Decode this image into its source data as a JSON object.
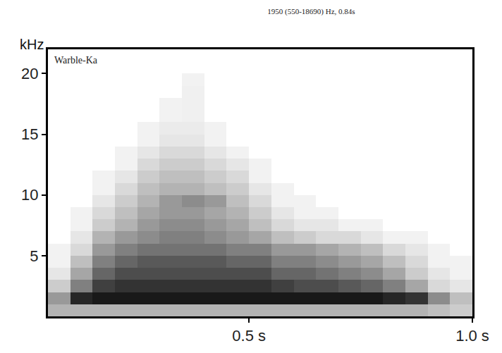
{
  "chart_data": {
    "type": "heatmap",
    "title": "1950 (550-18690) Hz, 0.84s",
    "ylabel": "kHz",
    "annotations": [
      "Warble-Ka"
    ],
    "color": "#000000",
    "grid": false,
    "xlim": [
      0.05,
      1.0
    ],
    "xticks": [
      {
        "value": 0.5,
        "label": "0.5 s"
      },
      {
        "value": 1.0,
        "label": "1.0 s"
      }
    ],
    "ylim": [
      0,
      22
    ],
    "yticks": [
      5,
      10,
      15,
      20
    ],
    "zlim": [
      0,
      1
    ],
    "x": [
      0.05,
      0.1,
      0.15,
      0.2,
      0.25,
      0.3,
      0.35,
      0.4,
      0.45,
      0.5,
      0.55,
      0.6,
      0.65,
      0.7,
      0.75,
      0.8,
      0.85,
      0.9,
      0.95,
      1.0
    ],
    "y": [
      0,
      1,
      2,
      3,
      4,
      5,
      6,
      7,
      8,
      9,
      10,
      11,
      12,
      13,
      14,
      15,
      16,
      17,
      18,
      19,
      20,
      21,
      22
    ],
    "z": [
      [
        0.3,
        0.3,
        0.3,
        0.3,
        0.3,
        0.3,
        0.3,
        0.3,
        0.3,
        0.3,
        0.3,
        0.3,
        0.3,
        0.3,
        0.3,
        0.3,
        0.3,
        0.25,
        0.2
      ],
      [
        0.4,
        0.85,
        0.9,
        0.9,
        0.9,
        0.9,
        0.9,
        0.9,
        0.9,
        0.9,
        0.9,
        0.9,
        0.9,
        0.9,
        0.9,
        0.85,
        0.8,
        0.45,
        0.25
      ],
      [
        0.2,
        0.5,
        0.75,
        0.8,
        0.8,
        0.8,
        0.8,
        0.8,
        0.8,
        0.8,
        0.75,
        0.7,
        0.7,
        0.65,
        0.6,
        0.5,
        0.35,
        0.15,
        0.1
      ],
      [
        0.1,
        0.35,
        0.6,
        0.7,
        0.7,
        0.7,
        0.7,
        0.7,
        0.7,
        0.7,
        0.6,
        0.6,
        0.55,
        0.5,
        0.45,
        0.35,
        0.2,
        0.1,
        0.05
      ],
      [
        0.05,
        0.25,
        0.5,
        0.6,
        0.65,
        0.65,
        0.65,
        0.65,
        0.6,
        0.6,
        0.5,
        0.5,
        0.45,
        0.4,
        0.35,
        0.25,
        0.15,
        0.05,
        0.05
      ],
      [
        0.05,
        0.15,
        0.4,
        0.5,
        0.55,
        0.55,
        0.55,
        0.55,
        0.5,
        0.5,
        0.4,
        0.4,
        0.35,
        0.3,
        0.25,
        0.15,
        0.1,
        0.05,
        0
      ],
      [
        0,
        0.1,
        0.3,
        0.4,
        0.45,
        0.5,
        0.5,
        0.45,
        0.4,
        0.35,
        0.25,
        0.2,
        0.15,
        0.15,
        0.1,
        0.05,
        0.05,
        0,
        0
      ],
      [
        0,
        0.05,
        0.2,
        0.3,
        0.4,
        0.45,
        0.45,
        0.4,
        0.35,
        0.25,
        0.15,
        0.1,
        0.1,
        0.05,
        0.05,
        0,
        0,
        0,
        0
      ],
      [
        0,
        0.05,
        0.15,
        0.25,
        0.35,
        0.4,
        0.4,
        0.35,
        0.3,
        0.2,
        0.1,
        0.05,
        0.05,
        0,
        0,
        0,
        0,
        0,
        0
      ],
      [
        0,
        0,
        0.1,
        0.2,
        0.3,
        0.4,
        0.45,
        0.4,
        0.25,
        0.15,
        0.05,
        0.05,
        0,
        0,
        0,
        0,
        0,
        0,
        0
      ],
      [
        0,
        0,
        0.05,
        0.15,
        0.25,
        0.3,
        0.3,
        0.25,
        0.2,
        0.1,
        0.05,
        0,
        0,
        0,
        0,
        0,
        0,
        0,
        0
      ],
      [
        0,
        0,
        0.05,
        0.1,
        0.2,
        0.25,
        0.25,
        0.2,
        0.15,
        0.05,
        0,
        0,
        0,
        0,
        0,
        0,
        0,
        0,
        0
      ],
      [
        0,
        0,
        0,
        0.05,
        0.15,
        0.2,
        0.2,
        0.15,
        0.1,
        0.05,
        0,
        0,
        0,
        0,
        0,
        0,
        0,
        0,
        0
      ],
      [
        0,
        0,
        0,
        0.05,
        0.1,
        0.15,
        0.15,
        0.1,
        0.05,
        0,
        0,
        0,
        0,
        0,
        0,
        0,
        0,
        0,
        0
      ],
      [
        0,
        0,
        0,
        0,
        0.05,
        0.1,
        0.1,
        0.05,
        0,
        0,
        0,
        0,
        0,
        0,
        0,
        0,
        0,
        0,
        0
      ],
      [
        0,
        0,
        0,
        0,
        0.05,
        0.08,
        0.08,
        0.05,
        0,
        0,
        0,
        0,
        0,
        0,
        0,
        0,
        0,
        0,
        0
      ],
      [
        0,
        0,
        0,
        0,
        0,
        0.05,
        0.06,
        0,
        0,
        0,
        0,
        0,
        0,
        0,
        0,
        0,
        0,
        0,
        0
      ],
      [
        0,
        0,
        0,
        0,
        0,
        0.05,
        0.06,
        0,
        0,
        0,
        0,
        0,
        0,
        0,
        0,
        0,
        0,
        0,
        0
      ],
      [
        0,
        0,
        0,
        0,
        0,
        0,
        0.06,
        0,
        0,
        0,
        0,
        0,
        0,
        0,
        0,
        0,
        0,
        0,
        0
      ],
      [
        0,
        0,
        0,
        0,
        0,
        0,
        0.05,
        0,
        0,
        0,
        0,
        0,
        0,
        0,
        0,
        0,
        0,
        0,
        0
      ],
      [
        0,
        0,
        0,
        0,
        0,
        0,
        0,
        0,
        0,
        0,
        0,
        0,
        0,
        0,
        0,
        0,
        0,
        0,
        0
      ],
      [
        0,
        0,
        0,
        0,
        0,
        0,
        0,
        0,
        0,
        0,
        0,
        0,
        0,
        0,
        0,
        0,
        0,
        0,
        0
      ]
    ]
  }
}
